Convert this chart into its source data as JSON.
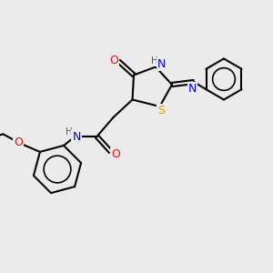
{
  "background_color": "#ebebeb",
  "bond_color": "#000000",
  "bond_lw": 1.5,
  "atom_colors": {
    "O": "#ff0000",
    "N": "#0000ff",
    "S": "#ccaa00",
    "H": "#008080",
    "C": "#000000"
  },
  "font_size": 8.5,
  "figsize": [
    3.0,
    3.0
  ],
  "dpi": 100
}
